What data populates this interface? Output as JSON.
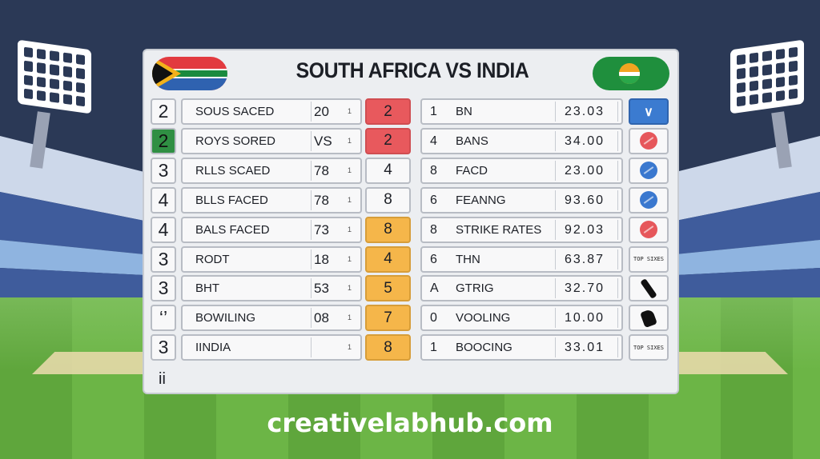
{
  "header": {
    "title": "SOUTH AFRICA VS INDIA"
  },
  "left_rows": [
    {
      "num": "2",
      "label": "SOUS SACED",
      "value": "20",
      "tick": "1",
      "badge": "2",
      "num_style": "plain",
      "badge_style": "red"
    },
    {
      "num": "2",
      "label": "ROYS SORED",
      "value": "VS",
      "tick": "1",
      "badge": "2",
      "num_style": "green",
      "badge_style": "red"
    },
    {
      "num": "3",
      "label": "RLLS SCAED",
      "value": "78",
      "tick": "1",
      "badge": "4",
      "num_style": "plain",
      "badge_style": "plain"
    },
    {
      "num": "4",
      "label": "BLLS FACED",
      "value": "78",
      "tick": "1",
      "badge": "8",
      "num_style": "plain",
      "badge_style": "plain"
    },
    {
      "num": "4",
      "label": "BALS FACED",
      "value": "73",
      "tick": "1",
      "badge": "8",
      "num_style": "plain",
      "badge_style": "orange"
    },
    {
      "num": "3",
      "label": "RODT",
      "value": "18",
      "tick": "1",
      "badge": "4",
      "num_style": "plain",
      "badge_style": "orange"
    },
    {
      "num": "3",
      "label": "BHT",
      "value": "53",
      "tick": "1",
      "badge": "5",
      "num_style": "plain",
      "badge_style": "orange"
    },
    {
      "num": "‘’",
      "label": "BOWILING",
      "value": "08",
      "tick": "1",
      "badge": "7",
      "num_style": "plain",
      "badge_style": "orange"
    },
    {
      "num": "3",
      "label": "IINDIA",
      "value": "",
      "tick": "1",
      "badge": "8",
      "num_style": "plain",
      "badge_style": "orange"
    }
  ],
  "right_rows": [
    {
      "idx": "1",
      "label": "BN",
      "value": "23.03",
      "icon": "wicket-icon",
      "icon_style": "blue-bg"
    },
    {
      "idx": "4",
      "label": "BANS",
      "value": "34.00",
      "icon": "red-ball-icon",
      "icon_style": "plain"
    },
    {
      "idx": "8",
      "label": "FACD",
      "value": "23.00",
      "icon": "blue-ball-icon",
      "icon_style": "plain"
    },
    {
      "idx": "6",
      "label": "FEANNG",
      "value": "93.60",
      "icon": "blue-ball-icon",
      "icon_style": "plain"
    },
    {
      "idx": "8",
      "label": "STRIKE RATES",
      "value": "92.03",
      "icon": "red-ball-icon",
      "icon_style": "plain"
    },
    {
      "idx": "6",
      "label": "THN",
      "value": "63.87",
      "icon": "text-icon",
      "icon_text": "TOP SIXES",
      "icon_style": "plain"
    },
    {
      "idx": "A",
      "label": "GTRIG",
      "value": "32.70",
      "icon": "bat-icon",
      "icon_style": "plain"
    },
    {
      "idx": "0",
      "label": "VOOLING",
      "value": "10.00",
      "icon": "glove-icon",
      "icon_style": "plain"
    },
    {
      "idx": "1",
      "label": "BOOCING",
      "value": "33.01",
      "icon": "text-icon",
      "icon_text": "TOP SIXES",
      "icon_style": "plain"
    }
  ],
  "footnote": "ii",
  "footer": {
    "site": "creativelabhub.com"
  },
  "colors": {
    "red": "#e8595d",
    "orange": "#f5b64a",
    "green": "#2f8f43",
    "blue": "#3b7bd0"
  }
}
